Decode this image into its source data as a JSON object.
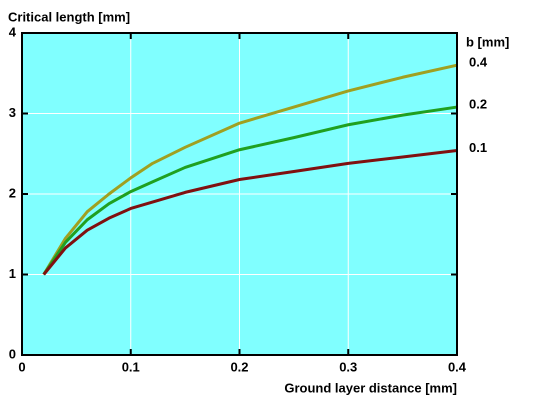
{
  "chart_data": {
    "type": "line",
    "title": "Critical length [mm]",
    "x_label": "Ground layer distance [mm]",
    "legend_title": "b [mm]",
    "x": [
      0.02,
      0.04,
      0.06,
      0.08,
      0.1,
      0.12,
      0.15,
      0.2,
      0.25,
      0.3,
      0.35,
      0.4
    ],
    "series": [
      {
        "name": "0.4",
        "color": "#a0a020",
        "values": [
          1.0,
          1.45,
          1.78,
          2.0,
          2.2,
          2.38,
          2.58,
          2.88,
          3.08,
          3.28,
          3.45,
          3.6
        ]
      },
      {
        "name": "0.2",
        "color": "#20a020",
        "values": [
          1.0,
          1.4,
          1.68,
          1.88,
          2.03,
          2.15,
          2.33,
          2.55,
          2.7,
          2.86,
          2.98,
          3.08
        ]
      },
      {
        "name": "0.1",
        "color": "#801010",
        "values": [
          1.0,
          1.33,
          1.55,
          1.7,
          1.82,
          1.9,
          2.02,
          2.18,
          2.28,
          2.38,
          2.46,
          2.54
        ]
      }
    ],
    "xlim": [
      0,
      0.4
    ],
    "ylim": [
      0,
      4
    ],
    "xticks": [
      0,
      0.1,
      0.2,
      0.3,
      0.4
    ],
    "yticks": [
      0,
      1,
      2,
      3,
      4
    ],
    "grid": true,
    "background": "#80ffff"
  }
}
